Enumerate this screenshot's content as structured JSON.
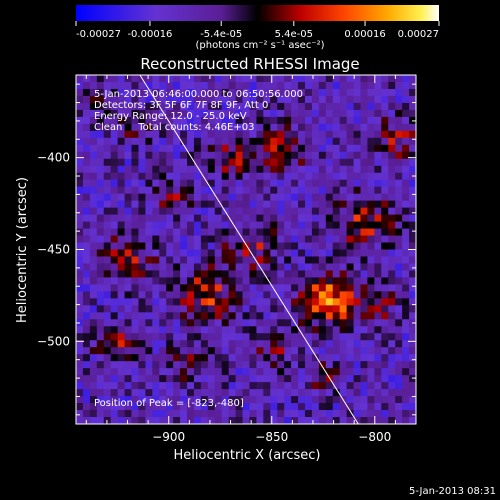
{
  "chart_data": {
    "type": "heatmap",
    "title": "Reconstructed RHESSI Image",
    "xlabel": "Heliocentric X (arcsec)",
    "ylabel": "Heliocentric Y (arcsec)",
    "xlim": [
      -945,
      -780
    ],
    "ylim": [
      -545,
      -355
    ],
    "x_ticks": [
      -900,
      -850,
      -800
    ],
    "x_tick_labels": [
      "−900",
      "−850",
      "−800"
    ],
    "y_ticks": [
      -400,
      -450,
      -500
    ],
    "y_tick_labels": [
      "−400",
      "−450",
      "−500"
    ],
    "annotations": [
      "5-Jan-2013 06:46:00.000 to 06:50:56.000",
      "Detectors: 3F 5F 6F 7F 8F 9F, Att 0",
      "Energy Range: 12.0 - 25.0 keV",
      "Clean     Total counts: 4.46E+03"
    ],
    "peak_label": "Position of Peak = [-823,-480]",
    "peak": {
      "x": -823,
      "y": -480
    },
    "colorbar": {
      "range": [
        -0.00027,
        0.00027
      ],
      "ticks": [
        -0.00027,
        -0.00016,
        -5.4e-05,
        5.4e-05,
        0.00016,
        0.00027
      ],
      "tick_labels": [
        "-0.00027",
        "-0.00016",
        "-5.4e-05",
        "5.4e-05",
        "0.00016",
        "0.00027"
      ],
      "unit_label": "(photons cm⁻² s⁻¹ asec⁻²)"
    },
    "limb_line": {
      "x": [
        -914,
        -808
      ],
      "y": [
        -355,
        -545
      ]
    },
    "sources": [
      {
        "x": -823,
        "y": -478,
        "amplitude": 0.00027,
        "width": 9
      },
      {
        "x": -882,
        "y": -475,
        "amplitude": 0.00018,
        "width": 10
      },
      {
        "x": -920,
        "y": -455,
        "amplitude": 0.00016,
        "width": 9
      },
      {
        "x": -860,
        "y": -448,
        "amplitude": 0.00015,
        "width": 9
      },
      {
        "x": -845,
        "y": -395,
        "amplitude": 0.00014,
        "width": 9
      },
      {
        "x": -805,
        "y": -435,
        "amplitude": 0.00017,
        "width": 10
      },
      {
        "x": -870,
        "y": -400,
        "amplitude": 0.00013,
        "width": 8
      },
      {
        "x": -900,
        "y": -420,
        "amplitude": 0.00012,
        "width": 7
      },
      {
        "x": -790,
        "y": -390,
        "amplitude": 0.00013,
        "width": 8
      },
      {
        "x": -925,
        "y": -500,
        "amplitude": 0.00013,
        "width": 8
      },
      {
        "x": -890,
        "y": -510,
        "amplitude": 0.00012,
        "width": 8
      },
      {
        "x": -800,
        "y": -480,
        "amplitude": 0.00013,
        "width": 8
      },
      {
        "x": -850,
        "y": -505,
        "amplitude": 0.0001,
        "width": 8
      },
      {
        "x": -915,
        "y": -385,
        "amplitude": 9e-05,
        "width": 7
      },
      {
        "x": -825,
        "y": -520,
        "amplitude": 9e-05,
        "width": 7
      },
      {
        "x": -935,
        "y": -370,
        "amplitude": 8e-05,
        "width": 6
      }
    ],
    "background_level": -0.00011,
    "noise_amplitude": 9e-05
  },
  "footer": {
    "date": "5-Jan-2013 08:31"
  }
}
